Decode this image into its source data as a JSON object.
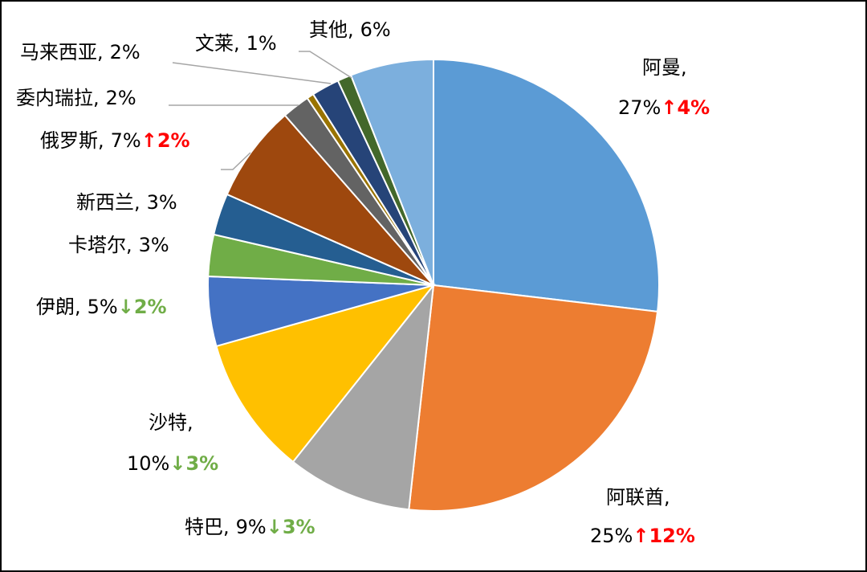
{
  "chart_data": {
    "type": "pie",
    "categories": [
      "阿曼,",
      "阿联酋,",
      "特巴,",
      "沙特,",
      "伊朗,",
      "卡塔尔,",
      "新西兰,",
      "俄罗斯,",
      "委内瑞拉,",
      null,
      "马来西亚,",
      "文莱,",
      "其他,"
    ],
    "values": [
      27,
      25,
      9,
      10,
      5,
      3,
      3,
      7,
      2,
      0.5,
      2,
      1,
      6
    ],
    "value_labels": [
      "27%",
      "25%",
      "9%",
      "10%",
      "5%",
      "3%",
      "3%",
      "7%",
      "2%",
      null,
      "2%",
      "1%",
      "6%"
    ],
    "colors": [
      "#5b9bd5",
      "#ed7d31",
      "#a5a5a5",
      "#ffc000",
      "#4472c4",
      "#70ad47",
      "#255e91",
      "#9e480e",
      "#636363",
      "#997300",
      "#264478",
      "#43682b",
      "#7cafdd"
    ],
    "changes": [
      {
        "value": 4,
        "label": "↑4%"
      },
      {
        "value": 12,
        "label": "↑12%"
      },
      {
        "value": -3,
        "label": "↓3%"
      },
      {
        "value": -3,
        "label": "↓3%"
      },
      {
        "value": -2,
        "label": "↓2%"
      },
      null,
      null,
      {
        "value": 2,
        "label": "↑2%"
      },
      null,
      null,
      null,
      null,
      null
    ],
    "up_color": "#ff0000",
    "down_color": "#70ad47"
  }
}
